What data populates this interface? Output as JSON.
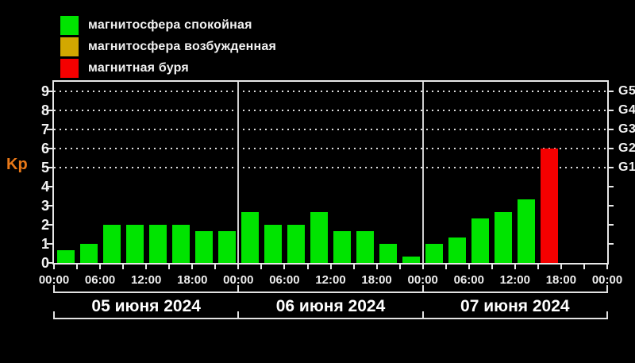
{
  "colors": {
    "background": "#000000",
    "axis": "#E8E8E8",
    "text": "#F2F2F2",
    "date_text": "#FFFFFF",
    "kp_label_color": "#E87818",
    "quiet": "#00E400",
    "excited": "#D2A800",
    "storm": "#F50000"
  },
  "legend": {
    "items": [
      {
        "name": "quiet",
        "label": "магнитосфера спокойная"
      },
      {
        "name": "excited",
        "label": "магнитосфера возбужденная"
      },
      {
        "name": "storm",
        "label": "магнитная буря"
      }
    ]
  },
  "chart_data": {
    "type": "bar",
    "title": "Kp index (geomagnetic activity) 05–07 June 2024",
    "ylabel": "Kp",
    "ylim": [
      0,
      9
    ],
    "y_ticks": [
      0,
      1,
      2,
      3,
      4,
      5,
      6,
      7,
      8,
      9
    ],
    "right_axis": [
      {
        "label": "G1",
        "kp": 5
      },
      {
        "label": "G2",
        "kp": 6
      },
      {
        "label": "G3",
        "kp": 7
      },
      {
        "label": "G4",
        "kp": 8
      },
      {
        "label": "G5",
        "kp": 9
      }
    ],
    "dotted_gridlines_at_kp": [
      5,
      6,
      7,
      8,
      9
    ],
    "hours_per_bar": 3,
    "time_tick_labels": [
      "00:00",
      "06:00",
      "12:00",
      "18:00",
      "00:00",
      "06:00",
      "12:00",
      "18:00",
      "00:00",
      "06:00",
      "12:00",
      "18:00",
      "00:00"
    ],
    "days": [
      {
        "date": "05 июня 2024",
        "bars": [
          {
            "kp": 0.67,
            "status": "quiet"
          },
          {
            "kp": 1.0,
            "status": "quiet"
          },
          {
            "kp": 2.0,
            "status": "quiet"
          },
          {
            "kp": 2.0,
            "status": "quiet"
          },
          {
            "kp": 2.0,
            "status": "quiet"
          },
          {
            "kp": 2.0,
            "status": "quiet"
          },
          {
            "kp": 1.67,
            "status": "quiet"
          },
          {
            "kp": 1.67,
            "status": "quiet"
          }
        ]
      },
      {
        "date": "06 июня 2024",
        "bars": [
          {
            "kp": 2.67,
            "status": "quiet"
          },
          {
            "kp": 2.0,
            "status": "quiet"
          },
          {
            "kp": 2.0,
            "status": "quiet"
          },
          {
            "kp": 2.67,
            "status": "quiet"
          },
          {
            "kp": 1.67,
            "status": "quiet"
          },
          {
            "kp": 1.67,
            "status": "quiet"
          },
          {
            "kp": 1.0,
            "status": "quiet"
          },
          {
            "kp": 0.33,
            "status": "quiet"
          }
        ]
      },
      {
        "date": "07 июня 2024",
        "bars": [
          {
            "kp": 1.0,
            "status": "quiet"
          },
          {
            "kp": 1.33,
            "status": "quiet"
          },
          {
            "kp": 2.33,
            "status": "quiet"
          },
          {
            "kp": 2.67,
            "status": "quiet"
          },
          {
            "kp": 3.33,
            "status": "quiet"
          },
          {
            "kp": 6.0,
            "status": "storm"
          }
        ]
      }
    ]
  }
}
